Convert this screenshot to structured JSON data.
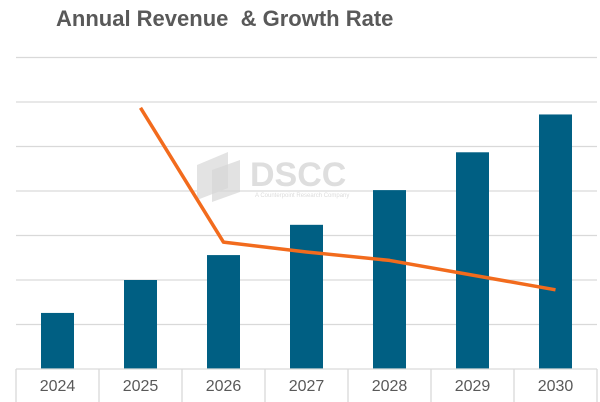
{
  "chart_data": {
    "type": "bar",
    "title": "Annual Revenue  & Growth Rate",
    "categories": [
      "2024",
      "2025",
      "2026",
      "2027",
      "2028",
      "2029",
      "2030"
    ],
    "series": [
      {
        "name": "Revenue",
        "type": "bar",
        "color": "#005f83",
        "values": [
          1.26,
          2.0,
          2.56,
          3.24,
          4.02,
          4.87,
          5.72
        ]
      },
      {
        "name": "Growth Rate",
        "type": "line",
        "color": "#f26b1d",
        "values": [
          null,
          5.87,
          2.85,
          2.63,
          2.44,
          2.11,
          1.78
        ]
      }
    ],
    "ylim": [
      0,
      7
    ],
    "grid": true,
    "xlabel": "",
    "ylabel": "",
    "watermark": {
      "text": "DSCC",
      "subtext": "A Counterpoint Research Company"
    }
  }
}
